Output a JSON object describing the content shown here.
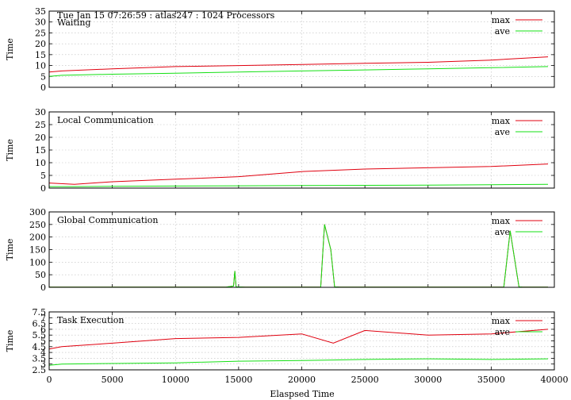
{
  "header": {
    "text": "Tue Jan 15 07:26:59 : atlas247 : 1024 Processors"
  },
  "colors": {
    "max": "#e0000f",
    "ave": "#14e014",
    "grid": "#bdbdbd"
  },
  "legend": {
    "max": "max",
    "ave": "ave"
  },
  "xaxis": {
    "label": "Elaspsed Time",
    "range": [
      0,
      40000
    ],
    "ticks": [
      0,
      5000,
      10000,
      15000,
      20000,
      25000,
      30000,
      35000,
      40000
    ],
    "tick_labels": [
      "0",
      "5000",
      "10000",
      "15000",
      "20000",
      "25000",
      "30000",
      "35000",
      "40000"
    ]
  },
  "chart_data": [
    {
      "type": "line",
      "title": "Waiting",
      "ylabel": "Time",
      "ylim": [
        0,
        35
      ],
      "yticks": [
        0,
        5,
        10,
        15,
        20,
        25,
        30,
        35
      ],
      "ytick_labels": [
        "0",
        "5",
        "10",
        "15",
        "20",
        "25",
        "30",
        "35"
      ],
      "grid": true,
      "legend": "top-right",
      "series": [
        {
          "name": "max",
          "x": [
            0,
            1000,
            5000,
            10000,
            15000,
            20000,
            25000,
            30000,
            35000,
            39500
          ],
          "y": [
            7,
            7.5,
            8.5,
            9.5,
            10,
            10.5,
            11,
            11.5,
            12.5,
            14
          ]
        },
        {
          "name": "ave",
          "x": [
            0,
            1000,
            5000,
            10000,
            15000,
            20000,
            25000,
            30000,
            35000,
            39500
          ],
          "y": [
            5,
            5.5,
            6,
            6.5,
            7,
            7.5,
            8,
            8.5,
            9,
            9.5
          ]
        }
      ]
    },
    {
      "type": "line",
      "title": "Local Communication",
      "ylabel": "Time",
      "ylim": [
        0,
        30
      ],
      "yticks": [
        0,
        5,
        10,
        15,
        20,
        25,
        30
      ],
      "ytick_labels": [
        "0",
        "5",
        "10",
        "15",
        "20",
        "25",
        "30"
      ],
      "grid": true,
      "legend": "top-right",
      "series": [
        {
          "name": "max",
          "x": [
            0,
            2000,
            5000,
            10000,
            15000,
            20000,
            25000,
            30000,
            35000,
            39500
          ],
          "y": [
            2,
            1.5,
            2.5,
            3.5,
            4.5,
            6.5,
            7.5,
            8,
            8.5,
            9.5
          ]
        },
        {
          "name": "ave",
          "x": [
            0,
            2000,
            5000,
            10000,
            15000,
            20000,
            25000,
            30000,
            35000,
            39500
          ],
          "y": [
            0.6,
            0.6,
            0.7,
            0.8,
            0.9,
            1,
            1.1,
            1.2,
            1.3,
            1.5
          ]
        }
      ]
    },
    {
      "type": "line",
      "title": "Global Communication",
      "ylabel": "Time",
      "ylim": [
        0,
        300
      ],
      "yticks": [
        0,
        50,
        100,
        150,
        200,
        250,
        300
      ],
      "ytick_labels": [
        "0",
        "50",
        "100",
        "150",
        "200",
        "250",
        "300"
      ],
      "grid": true,
      "legend": "top-right",
      "series": [
        {
          "name": "max",
          "x": [
            0,
            14000,
            14600,
            14700,
            14800,
            15500,
            21500,
            21800,
            22300,
            22600,
            23000,
            36000,
            36500,
            36800,
            37200,
            37500,
            39500
          ],
          "y": [
            1,
            1,
            5,
            65,
            2,
            1,
            1,
            250,
            150,
            2,
            1,
            1,
            225,
            130,
            2,
            1,
            1
          ]
        },
        {
          "name": "ave",
          "x": [
            0,
            14000,
            14600,
            14700,
            14800,
            15500,
            21500,
            21800,
            22300,
            22600,
            23000,
            36000,
            36500,
            36800,
            37200,
            37500,
            39500
          ],
          "y": [
            1,
            1,
            5,
            65,
            2,
            1,
            1,
            250,
            150,
            2,
            1,
            1,
            225,
            130,
            2,
            1,
            1
          ]
        }
      ]
    },
    {
      "type": "line",
      "title": "Task Execution",
      "ylabel": "Time",
      "ylim": [
        2.5,
        7.5
      ],
      "yticks": [
        2.5,
        3,
        3.5,
        4,
        4.5,
        5,
        5.5,
        6,
        6.5,
        7,
        7.5
      ],
      "ytick_labels": [
        "2.5",
        "3",
        "3.5",
        "4",
        "4.5",
        "5",
        "5.5",
        "6",
        "6.5",
        "7",
        "7.5"
      ],
      "grid": true,
      "legend": "top-right",
      "series": [
        {
          "name": "max",
          "x": [
            0,
            1000,
            5000,
            10000,
            15000,
            20000,
            22500,
            25000,
            30000,
            35000,
            39500
          ],
          "y": [
            4.3,
            4.5,
            4.8,
            5.2,
            5.3,
            5.6,
            4.8,
            5.9,
            5.5,
            5.6,
            6
          ]
        },
        {
          "name": "ave",
          "x": [
            0,
            1000,
            5000,
            10000,
            15000,
            20000,
            22500,
            25000,
            30000,
            35000,
            39500
          ],
          "y": [
            2.9,
            3,
            3.05,
            3.1,
            3.25,
            3.3,
            3.35,
            3.4,
            3.45,
            3.4,
            3.45
          ]
        }
      ]
    }
  ]
}
